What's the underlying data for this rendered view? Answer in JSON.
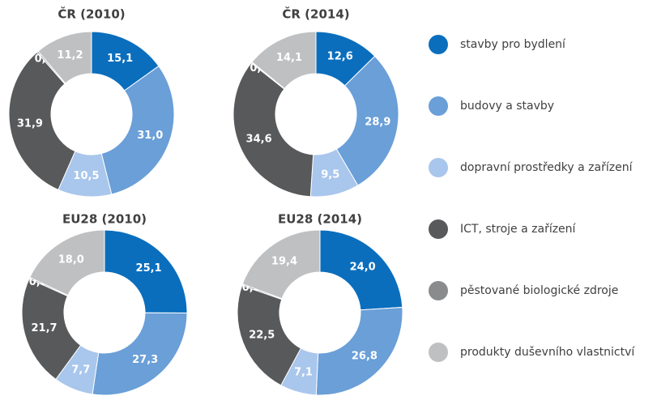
{
  "chart_data": [
    {
      "type": "pie",
      "title": "ČR (2010)",
      "values": [
        15.1,
        31.0,
        10.5,
        31.9,
        0.3,
        11.2
      ],
      "value_labels": [
        "15,1",
        "31,0",
        "10,5",
        "31,9",
        "0,3",
        "11,2"
      ]
    },
    {
      "type": "pie",
      "title": "ČR (2014)",
      "values": [
        12.6,
        28.9,
        9.5,
        34.6,
        0.2,
        14.1
      ],
      "value_labels": [
        "12,6",
        "28,9",
        "9,5",
        "34,6",
        "0,2",
        "14,1"
      ]
    },
    {
      "type": "pie",
      "title": "EU28 (2010)",
      "values": [
        25.1,
        27.3,
        7.7,
        21.7,
        0.3,
        18.0
      ],
      "value_labels": [
        "25,1",
        "27,3",
        "7,7",
        "21,7",
        "0,3",
        "18,0"
      ]
    },
    {
      "type": "pie",
      "title": "EU28 (2014)",
      "values": [
        24.0,
        26.8,
        7.1,
        22.5,
        0.3,
        19.4
      ],
      "value_labels": [
        "24,0",
        "26,8",
        "7,1",
        "22,5",
        "0,3",
        "19,4"
      ]
    }
  ],
  "legend": {
    "names": [
      "stavby pro bydlení",
      "budovy a stavby",
      "dopravní prostředky a zařízení",
      "ICT, stroje a zařízení",
      "pěstované biologické zdroje",
      "produkty duševního vlastnictví"
    ],
    "colors": [
      "#0a6ebd",
      "#6a9fd8",
      "#a9c6ec",
      "#58595b",
      "#8a8b8d",
      "#bfc0c2"
    ]
  }
}
